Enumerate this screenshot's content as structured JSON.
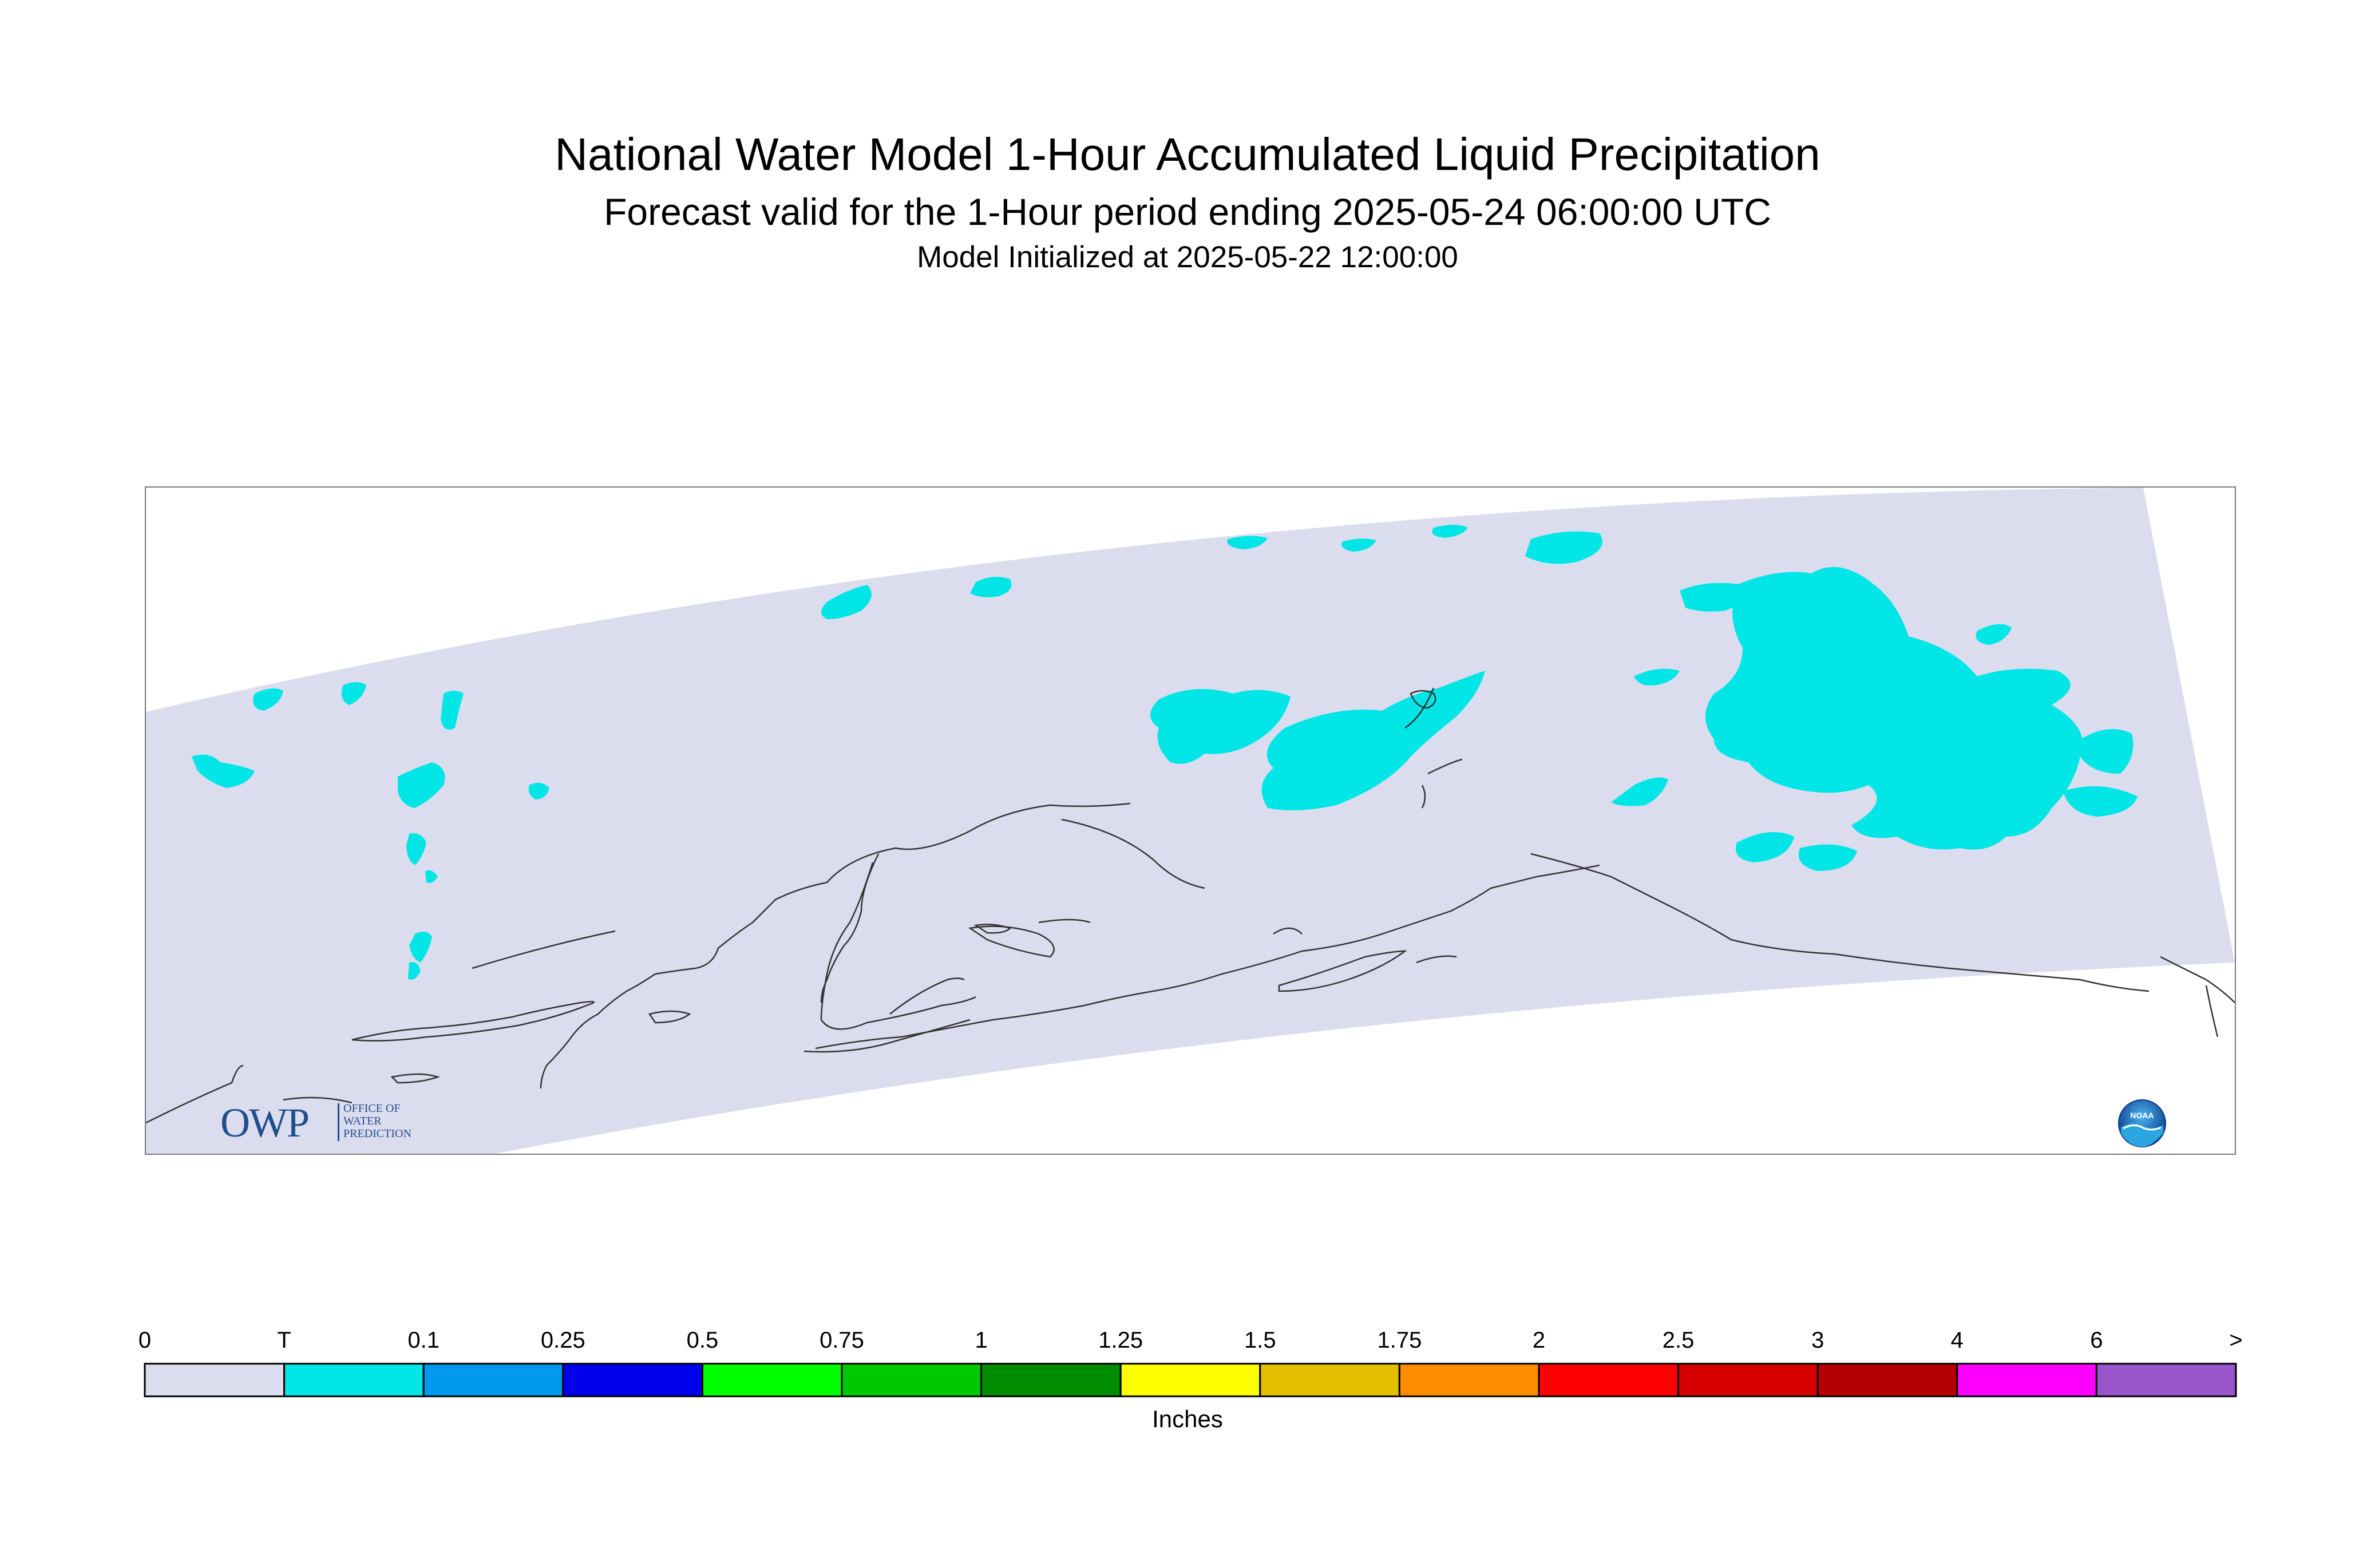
{
  "header": {
    "title": "National Water Model 1-Hour Accumulated Liquid Precipitation",
    "subtitle": "Forecast valid for the 1-Hour period ending 2025-05-24 06:00:00 UTC",
    "init_line": "Model Initialized at 2025-05-22 12:00:00"
  },
  "logos": {
    "owp_letters": "OWP",
    "owp_line1": "OFFICE OF",
    "owp_line2": "WATER",
    "owp_line3": "PREDICTION",
    "noaa_text": "NOAA"
  },
  "map": {
    "domain_fill": "#dcdcef",
    "precip_fill": "#00e6e6",
    "coastline_color": "#333333"
  },
  "legend": {
    "units": "Inches",
    "tick_labels": [
      "0",
      "T",
      "0.1",
      "0.25",
      "0.5",
      "0.75",
      "1",
      "1.25",
      "1.5",
      "1.75",
      "2",
      "2.5",
      "3",
      "4",
      "6",
      ">"
    ],
    "colors": [
      "#dcdcef",
      "#00e6e6",
      "#0099ee",
      "#0000ee",
      "#00ff00",
      "#00c800",
      "#008c00",
      "#ffff00",
      "#e6be00",
      "#ff8c00",
      "#ff0000",
      "#d70000",
      "#b40000",
      "#ff00ff",
      "#9955cc"
    ]
  }
}
